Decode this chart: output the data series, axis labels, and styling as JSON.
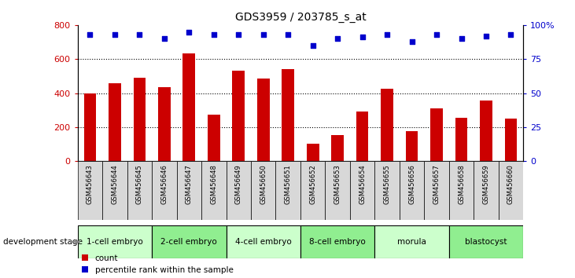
{
  "title": "GDS3959 / 203785_s_at",
  "samples": [
    "GSM456643",
    "GSM456644",
    "GSM456645",
    "GSM456646",
    "GSM456647",
    "GSM456648",
    "GSM456649",
    "GSM456650",
    "GSM456651",
    "GSM456652",
    "GSM456653",
    "GSM456654",
    "GSM456655",
    "GSM456656",
    "GSM456657",
    "GSM456658",
    "GSM456659",
    "GSM456660"
  ],
  "counts": [
    400,
    460,
    490,
    435,
    635,
    275,
    530,
    485,
    540,
    105,
    155,
    290,
    425,
    175,
    310,
    255,
    355,
    250
  ],
  "percentiles": [
    93,
    93,
    93,
    90,
    95,
    93,
    93,
    93,
    93,
    85,
    90,
    91,
    93,
    88,
    93,
    90,
    92,
    93
  ],
  "bar_color": "#cc0000",
  "dot_color": "#0000cc",
  "ylim_left": [
    0,
    800
  ],
  "ylim_right": [
    0,
    100
  ],
  "yticks_left": [
    0,
    200,
    400,
    600,
    800
  ],
  "yticks_right": [
    0,
    25,
    50,
    75,
    100
  ],
  "yticklabels_right": [
    "0",
    "25",
    "50",
    "75",
    "100%"
  ],
  "stages": [
    {
      "label": "1-cell embryo",
      "start": 0,
      "end": 3,
      "color": "#ccffcc"
    },
    {
      "label": "2-cell embryo",
      "start": 3,
      "end": 6,
      "color": "#90ee90"
    },
    {
      "label": "4-cell embryo",
      "start": 6,
      "end": 9,
      "color": "#ccffcc"
    },
    {
      "label": "8-cell embryo",
      "start": 9,
      "end": 12,
      "color": "#90ee90"
    },
    {
      "label": "morula",
      "start": 12,
      "end": 15,
      "color": "#ccffcc"
    },
    {
      "label": "blastocyst",
      "start": 15,
      "end": 18,
      "color": "#90ee90"
    }
  ],
  "dev_stage_label": "development stage",
  "legend_count": "count",
  "legend_percentile": "percentile rank within the sample",
  "background_color": "#ffffff",
  "sample_box_color": "#d8d8d8",
  "bar_width": 0.5
}
